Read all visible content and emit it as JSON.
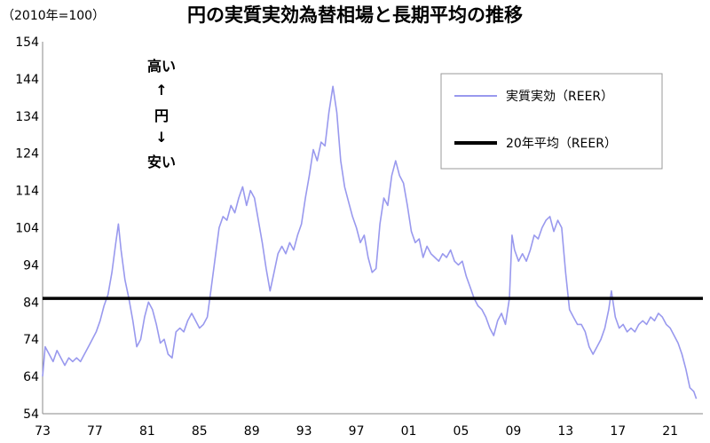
{
  "chart_data": {
    "type": "line",
    "title": "円の実質実効為替相場と長期平均の推移",
    "unit_label": "（2010年=100）",
    "xlabel": "",
    "ylabel": "",
    "ylim": [
      54,
      154
    ],
    "yticks": [
      54,
      64,
      74,
      84,
      94,
      104,
      114,
      124,
      134,
      144,
      154
    ],
    "xlim": [
      1973,
      2023.5
    ],
    "xticks": [
      "73",
      "77",
      "81",
      "85",
      "89",
      "93",
      "97",
      "01",
      "05",
      "09",
      "13",
      "17",
      "21"
    ],
    "grid": false,
    "legend_position": "top-right",
    "annotation": [
      "高い",
      "↑",
      "円",
      "↓",
      "安い"
    ],
    "series": [
      {
        "name": "実質実効（REER）",
        "color": "#9999ee",
        "points": [
          [
            1973.0,
            64
          ],
          [
            1973.2,
            72
          ],
          [
            1973.5,
            70
          ],
          [
            1973.8,
            68
          ],
          [
            1974.1,
            71
          ],
          [
            1974.4,
            69
          ],
          [
            1974.7,
            67
          ],
          [
            1975.0,
            69
          ],
          [
            1975.3,
            68
          ],
          [
            1975.6,
            69
          ],
          [
            1975.9,
            68
          ],
          [
            1976.2,
            70
          ],
          [
            1976.5,
            72
          ],
          [
            1976.8,
            74
          ],
          [
            1977.1,
            76
          ],
          [
            1977.4,
            79
          ],
          [
            1977.7,
            83
          ],
          [
            1978.0,
            86
          ],
          [
            1978.3,
            92
          ],
          [
            1978.6,
            100
          ],
          [
            1978.8,
            105
          ],
          [
            1979.0,
            98
          ],
          [
            1979.3,
            90
          ],
          [
            1979.6,
            85
          ],
          [
            1979.9,
            79
          ],
          [
            1980.2,
            72
          ],
          [
            1980.5,
            74
          ],
          [
            1980.8,
            80
          ],
          [
            1981.1,
            84
          ],
          [
            1981.4,
            82
          ],
          [
            1981.7,
            78
          ],
          [
            1982.0,
            73
          ],
          [
            1982.3,
            74
          ],
          [
            1982.6,
            70
          ],
          [
            1982.9,
            69
          ],
          [
            1983.2,
            76
          ],
          [
            1983.5,
            77
          ],
          [
            1983.8,
            76
          ],
          [
            1984.1,
            79
          ],
          [
            1984.4,
            81
          ],
          [
            1984.7,
            79
          ],
          [
            1985.0,
            77
          ],
          [
            1985.3,
            78
          ],
          [
            1985.6,
            80
          ],
          [
            1985.9,
            88
          ],
          [
            1986.2,
            96
          ],
          [
            1986.5,
            104
          ],
          [
            1986.8,
            107
          ],
          [
            1987.1,
            106
          ],
          [
            1987.4,
            110
          ],
          [
            1987.7,
            108
          ],
          [
            1988.0,
            112
          ],
          [
            1988.3,
            115
          ],
          [
            1988.6,
            110
          ],
          [
            1988.9,
            114
          ],
          [
            1989.2,
            112
          ],
          [
            1989.5,
            106
          ],
          [
            1989.8,
            100
          ],
          [
            1990.1,
            93
          ],
          [
            1990.4,
            87
          ],
          [
            1990.7,
            92
          ],
          [
            1991.0,
            97
          ],
          [
            1991.3,
            99
          ],
          [
            1991.6,
            97
          ],
          [
            1991.9,
            100
          ],
          [
            1992.2,
            98
          ],
          [
            1992.5,
            102
          ],
          [
            1992.8,
            105
          ],
          [
            1993.1,
            112
          ],
          [
            1993.4,
            118
          ],
          [
            1993.7,
            125
          ],
          [
            1994.0,
            122
          ],
          [
            1994.3,
            127
          ],
          [
            1994.6,
            126
          ],
          [
            1994.9,
            135
          ],
          [
            1995.2,
            142
          ],
          [
            1995.5,
            135
          ],
          [
            1995.8,
            122
          ],
          [
            1996.1,
            115
          ],
          [
            1996.4,
            111
          ],
          [
            1996.7,
            107
          ],
          [
            1997.0,
            104
          ],
          [
            1997.3,
            100
          ],
          [
            1997.6,
            102
          ],
          [
            1997.9,
            96
          ],
          [
            1998.2,
            92
          ],
          [
            1998.5,
            93
          ],
          [
            1998.8,
            105
          ],
          [
            1999.1,
            112
          ],
          [
            1999.4,
            110
          ],
          [
            1999.7,
            118
          ],
          [
            2000.0,
            122
          ],
          [
            2000.3,
            118
          ],
          [
            2000.6,
            116
          ],
          [
            2000.9,
            110
          ],
          [
            2001.2,
            103
          ],
          [
            2001.5,
            100
          ],
          [
            2001.8,
            101
          ],
          [
            2002.1,
            96
          ],
          [
            2002.4,
            99
          ],
          [
            2002.7,
            97
          ],
          [
            2003.0,
            96
          ],
          [
            2003.3,
            95
          ],
          [
            2003.6,
            97
          ],
          [
            2003.9,
            96
          ],
          [
            2004.2,
            98
          ],
          [
            2004.5,
            95
          ],
          [
            2004.8,
            94
          ],
          [
            2005.1,
            95
          ],
          [
            2005.4,
            91
          ],
          [
            2005.7,
            88
          ],
          [
            2006.0,
            85
          ],
          [
            2006.3,
            83
          ],
          [
            2006.6,
            82
          ],
          [
            2006.9,
            80
          ],
          [
            2007.2,
            77
          ],
          [
            2007.5,
            75
          ],
          [
            2007.8,
            79
          ],
          [
            2008.1,
            81
          ],
          [
            2008.4,
            78
          ],
          [
            2008.7,
            85
          ],
          [
            2008.9,
            102
          ],
          [
            2009.1,
            98
          ],
          [
            2009.4,
            95
          ],
          [
            2009.7,
            97
          ],
          [
            2010.0,
            95
          ],
          [
            2010.3,
            98
          ],
          [
            2010.6,
            102
          ],
          [
            2010.9,
            101
          ],
          [
            2011.2,
            104
          ],
          [
            2011.5,
            106
          ],
          [
            2011.8,
            107
          ],
          [
            2012.1,
            103
          ],
          [
            2012.4,
            106
          ],
          [
            2012.7,
            104
          ],
          [
            2013.0,
            92
          ],
          [
            2013.3,
            82
          ],
          [
            2013.6,
            80
          ],
          [
            2013.9,
            78
          ],
          [
            2014.2,
            78
          ],
          [
            2014.5,
            76
          ],
          [
            2014.8,
            72
          ],
          [
            2015.1,
            70
          ],
          [
            2015.4,
            72
          ],
          [
            2015.7,
            74
          ],
          [
            2016.0,
            77
          ],
          [
            2016.3,
            82
          ],
          [
            2016.5,
            87
          ],
          [
            2016.8,
            80
          ],
          [
            2017.1,
            77
          ],
          [
            2017.4,
            78
          ],
          [
            2017.7,
            76
          ],
          [
            2018.0,
            77
          ],
          [
            2018.3,
            76
          ],
          [
            2018.6,
            78
          ],
          [
            2018.9,
            79
          ],
          [
            2019.2,
            78
          ],
          [
            2019.5,
            80
          ],
          [
            2019.8,
            79
          ],
          [
            2020.1,
            81
          ],
          [
            2020.4,
            80
          ],
          [
            2020.7,
            78
          ],
          [
            2021.0,
            77
          ],
          [
            2021.3,
            75
          ],
          [
            2021.6,
            73
          ],
          [
            2021.9,
            70
          ],
          [
            2022.2,
            66
          ],
          [
            2022.5,
            61
          ],
          [
            2022.8,
            60
          ],
          [
            2023.0,
            58
          ]
        ]
      },
      {
        "name": "20年平均（REER）",
        "color": "#000000",
        "points": [
          [
            1973.0,
            85
          ],
          [
            2023.5,
            85
          ]
        ]
      }
    ]
  }
}
